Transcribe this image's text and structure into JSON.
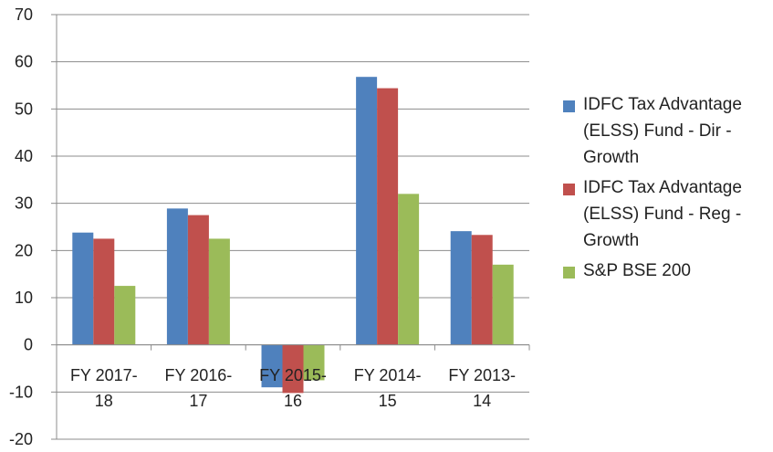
{
  "chart_data": {
    "type": "bar",
    "categories": [
      [
        "FY 2017-",
        "18"
      ],
      [
        "FY 2016-",
        "17"
      ],
      [
        "FY 2015-",
        "16"
      ],
      [
        "FY 2014-",
        "15"
      ],
      [
        "FY 2013-",
        "14"
      ]
    ],
    "series": [
      {
        "name": "IDFC Tax Advantage (ELSS) Fund  - Dir - Growth",
        "legend_lines": [
          "IDFC Tax Advantage",
          "(ELSS) Fund  - Dir -",
          "Growth"
        ],
        "color": "#4f81bd",
        "values": [
          23.8,
          28.9,
          -9.0,
          56.8,
          24.1
        ]
      },
      {
        "name": "IDFC Tax Advantage (ELSS) Fund - Reg - Growth",
        "legend_lines": [
          "IDFC Tax Advantage",
          "(ELSS) Fund - Reg -",
          "Growth"
        ],
        "color": "#c0504d",
        "values": [
          22.5,
          27.5,
          -10.2,
          54.4,
          23.3
        ]
      },
      {
        "name": "S&P BSE 200",
        "legend_lines": [
          "S&P BSE 200"
        ],
        "color": "#9bbb59",
        "values": [
          12.5,
          22.5,
          -7.5,
          32.0,
          17.0
        ]
      }
    ],
    "ylim": [
      -20,
      70
    ],
    "yticks": [
      -20,
      -10,
      0,
      10,
      20,
      30,
      40,
      50,
      60,
      70
    ],
    "grid": true,
    "legend_position": "right",
    "title": "",
    "xlabel": "",
    "ylabel": ""
  }
}
